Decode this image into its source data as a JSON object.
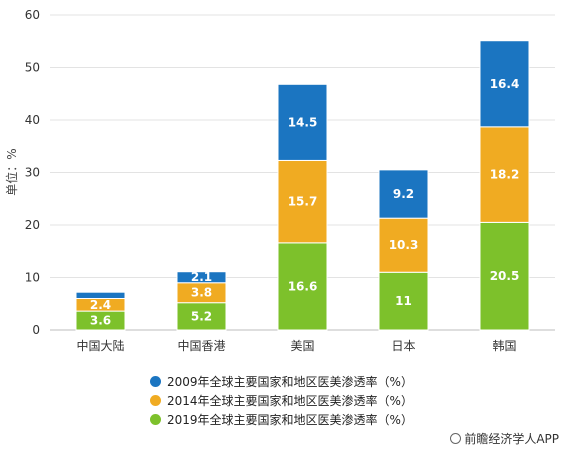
{
  "chart_data": {
    "type": "bar",
    "stacked": true,
    "categories": [
      "中国大陆",
      "中国香港",
      "美国",
      "日本",
      "韩国"
    ],
    "series": [
      {
        "name": "2019年全球主要国家和地区医美渗透率（%）",
        "color": "#7dc12b",
        "values": [
          3.6,
          5.2,
          16.6,
          11,
          20.5
        ],
        "labels": [
          "3.6",
          "5.2",
          "16.6",
          "11",
          "20.5"
        ]
      },
      {
        "name": "2014年全球主要国家和地区医美渗透率（%）",
        "color": "#f0ab22",
        "values": [
          2.4,
          3.8,
          15.7,
          10.3,
          18.2
        ],
        "labels": [
          "2.4",
          "3.8",
          "15.7",
          "10.3",
          "18.2"
        ]
      },
      {
        "name": "2009年全球主要国家和地区医美渗透率（%）",
        "color": "#1b75c1",
        "values": [
          1.2,
          2.1,
          14.5,
          9.2,
          16.4
        ],
        "labels": [
          "",
          "2.1",
          "14.5",
          "9.2",
          "16.4"
        ]
      }
    ],
    "ylabel": "单位：%",
    "ylim": [
      0,
      60
    ],
    "yticks": [
      0,
      10,
      20,
      30,
      40,
      50,
      60
    ],
    "grid": true,
    "legend_position": "bottom"
  },
  "legend_order": [
    2,
    1,
    0
  ],
  "source": "前瞻经济学人APP"
}
